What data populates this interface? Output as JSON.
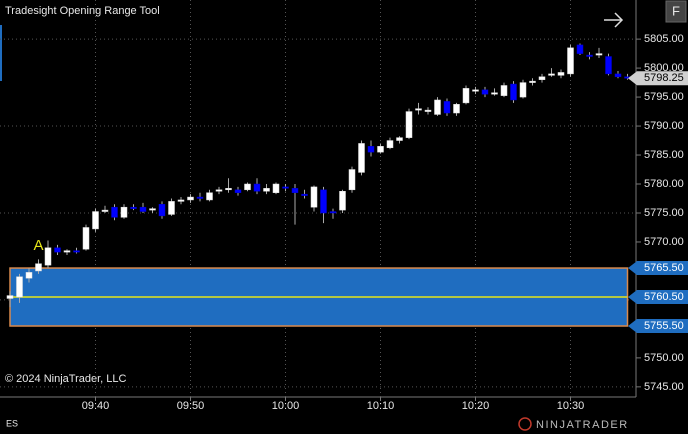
{
  "chart_data": {
    "type": "candlestick",
    "title": "Tradesight Opening Range Tool",
    "copyright": "© 2024 NinjaTrader, LLC",
    "instrument": "ES",
    "logo": "NINJATRADER",
    "button": "F",
    "marker": "A",
    "up_color": "#ffffff",
    "down_color": "#0000ff",
    "grid": true,
    "x": [
      "09:31",
      "09:32",
      "09:33",
      "09:34",
      "09:35",
      "09:36",
      "09:37",
      "09:38",
      "09:39",
      "09:40",
      "09:41",
      "09:42",
      "09:43",
      "09:44",
      "09:45",
      "09:46",
      "09:47",
      "09:48",
      "09:49",
      "09:50",
      "09:51",
      "09:52",
      "09:53",
      "09:54",
      "09:55",
      "09:56",
      "09:57",
      "09:58",
      "09:59",
      "10:00",
      "10:01",
      "10:02",
      "10:03",
      "10:04",
      "10:05",
      "10:06",
      "10:07",
      "10:08",
      "10:09",
      "10:10",
      "10:11",
      "10:12",
      "10:13",
      "10:14",
      "10:15",
      "10:16",
      "10:17",
      "10:18",
      "10:19",
      "10:20",
      "10:21",
      "10:22",
      "10:23",
      "10:24",
      "10:25",
      "10:26",
      "10:27",
      "10:28",
      "10:29",
      "10:30",
      "10:31",
      "10:32",
      "10:33",
      "10:34",
      "10:35",
      "10:36"
    ],
    "open": [
      5760.25,
      5760.5,
      5763.75,
      5765,
      5766,
      5769,
      5768.25,
      5768.5,
      5768.75,
      5772.25,
      5775.25,
      5776,
      5774.25,
      5776,
      5776,
      5775.5,
      5776.5,
      5774.75,
      5777,
      5777.25,
      5777.75,
      5777.25,
      5778.75,
      5779,
      5779,
      5779,
      5780,
      5778.75,
      5778.5,
      5779.5,
      5779.25,
      5778.25,
      5776,
      5779,
      5775.25,
      5775.5,
      5779,
      5782,
      5786.5,
      5785.5,
      5786.25,
      5787.5,
      5788,
      5792.75,
      5792.5,
      5792,
      5794.25,
      5792.25,
      5794,
      5796,
      5796.25,
      5795.5,
      5795.25,
      5797.25,
      5795,
      5797.5,
      5798,
      5798.75,
      5798.75,
      5799,
      5804,
      5802.25,
      5802.25,
      5802,
      5799,
      5798.5
    ],
    "high": [
      5761.5,
      5764.5,
      5765.5,
      5767,
      5770.25,
      5769.5,
      5768.75,
      5769,
      5773,
      5775.75,
      5776.25,
      5776.5,
      5776.5,
      5776.5,
      5776.75,
      5776,
      5777,
      5777.5,
      5777.75,
      5778.25,
      5778.5,
      5779,
      5779.5,
      5781,
      5779.5,
      5780.25,
      5781,
      5780,
      5780.25,
      5780,
      5780,
      5779,
      5779.75,
      5779.5,
      5775.75,
      5779,
      5783,
      5787.5,
      5787.5,
      5787,
      5788,
      5788.25,
      5793,
      5794,
      5793.25,
      5795,
      5794.75,
      5794,
      5797,
      5796.75,
      5796.75,
      5796.5,
      5797.5,
      5797.75,
      5798,
      5798.25,
      5799,
      5800,
      5799.75,
      5804,
      5804.25,
      5802.75,
      5803.5,
      5802.5,
      5799.5,
      5799
    ],
    "low": [
      5758.75,
      5759.5,
      5763,
      5764.5,
      5765.5,
      5767.75,
      5767.75,
      5768,
      5768.5,
      5771.75,
      5775,
      5773.75,
      5774,
      5775.5,
      5775,
      5775,
      5774,
      5774.5,
      5776.5,
      5776.75,
      5777,
      5777,
      5778.25,
      5778.5,
      5778,
      5778.75,
      5778.25,
      5778.25,
      5778.25,
      5778.75,
      5773,
      5777.5,
      5775.25,
      5773.25,
      5774,
      5775,
      5778.5,
      5781.5,
      5784.75,
      5785.25,
      5786,
      5787,
      5787.75,
      5792,
      5792,
      5791.75,
      5791.75,
      5791.75,
      5793.75,
      5795.5,
      5795,
      5795.25,
      5795,
      5794,
      5794.75,
      5797,
      5797.5,
      5798.5,
      5798.25,
      5798.5,
      5802.25,
      5801.5,
      5801.75,
      5798.75,
      5798.25,
      5798
    ],
    "close": [
      5760.75,
      5764,
      5764.75,
      5766.25,
      5769,
      5768.25,
      5768.5,
      5768.25,
      5772.5,
      5775.25,
      5775.5,
      5774.25,
      5776,
      5775.75,
      5775.25,
      5775.75,
      5774.5,
      5777,
      5777.25,
      5777.75,
      5777.5,
      5778.5,
      5779,
      5779.25,
      5778.5,
      5780,
      5778.75,
      5779.25,
      5780,
      5779.25,
      5778.5,
      5778,
      5779.5,
      5775,
      5775,
      5778.75,
      5782.5,
      5787,
      5785.5,
      5786.5,
      5787.5,
      5788,
      5792.5,
      5793,
      5792.75,
      5794.5,
      5792.25,
      5793.75,
      5796.5,
      5796.25,
      5795.5,
      5795.75,
      5797,
      5794.5,
      5797.5,
      5797.75,
      5798.5,
      5799,
      5799.25,
      5803.5,
      5802.5,
      5802,
      5802.5,
      5799,
      5798.5,
      5798.25
    ],
    "ylim": [
      5743.25,
      5811.75
    ],
    "yticks": [
      {
        "value": 5745,
        "label": "5745.00"
      },
      {
        "value": 5750,
        "label": "5750.00"
      },
      {
        "value": 5755,
        "label": "5755.00"
      },
      {
        "value": 5760,
        "label": "5760.00"
      },
      {
        "value": 5765,
        "label": "5765.00"
      },
      {
        "value": 5770,
        "label": "5770.00"
      },
      {
        "value": 5775,
        "label": "5775.00"
      },
      {
        "value": 5780,
        "label": "5780.00"
      },
      {
        "value": 5785,
        "label": "5785.00"
      },
      {
        "value": 5790,
        "label": "5790.00"
      },
      {
        "value": 5795,
        "label": "5795.00"
      },
      {
        "value": 5800,
        "label": "5800.00"
      },
      {
        "value": 5805,
        "label": "5805.00"
      }
    ],
    "xticks": [
      "09:40",
      "09:50",
      "10:00",
      "10:10",
      "10:20",
      "10:30"
    ],
    "opening_range": {
      "high": {
        "value": 5765.5,
        "label": "5765.50"
      },
      "mid": {
        "value": 5760.5,
        "label": "5760.50"
      },
      "low": {
        "value": 5755.5,
        "label": "5755.50"
      },
      "fill": "#1f6dc0",
      "border": "#d98a4e",
      "mid_color": "#e6e619"
    },
    "last_price": {
      "value": 5798.25,
      "label": "5798.25"
    }
  }
}
